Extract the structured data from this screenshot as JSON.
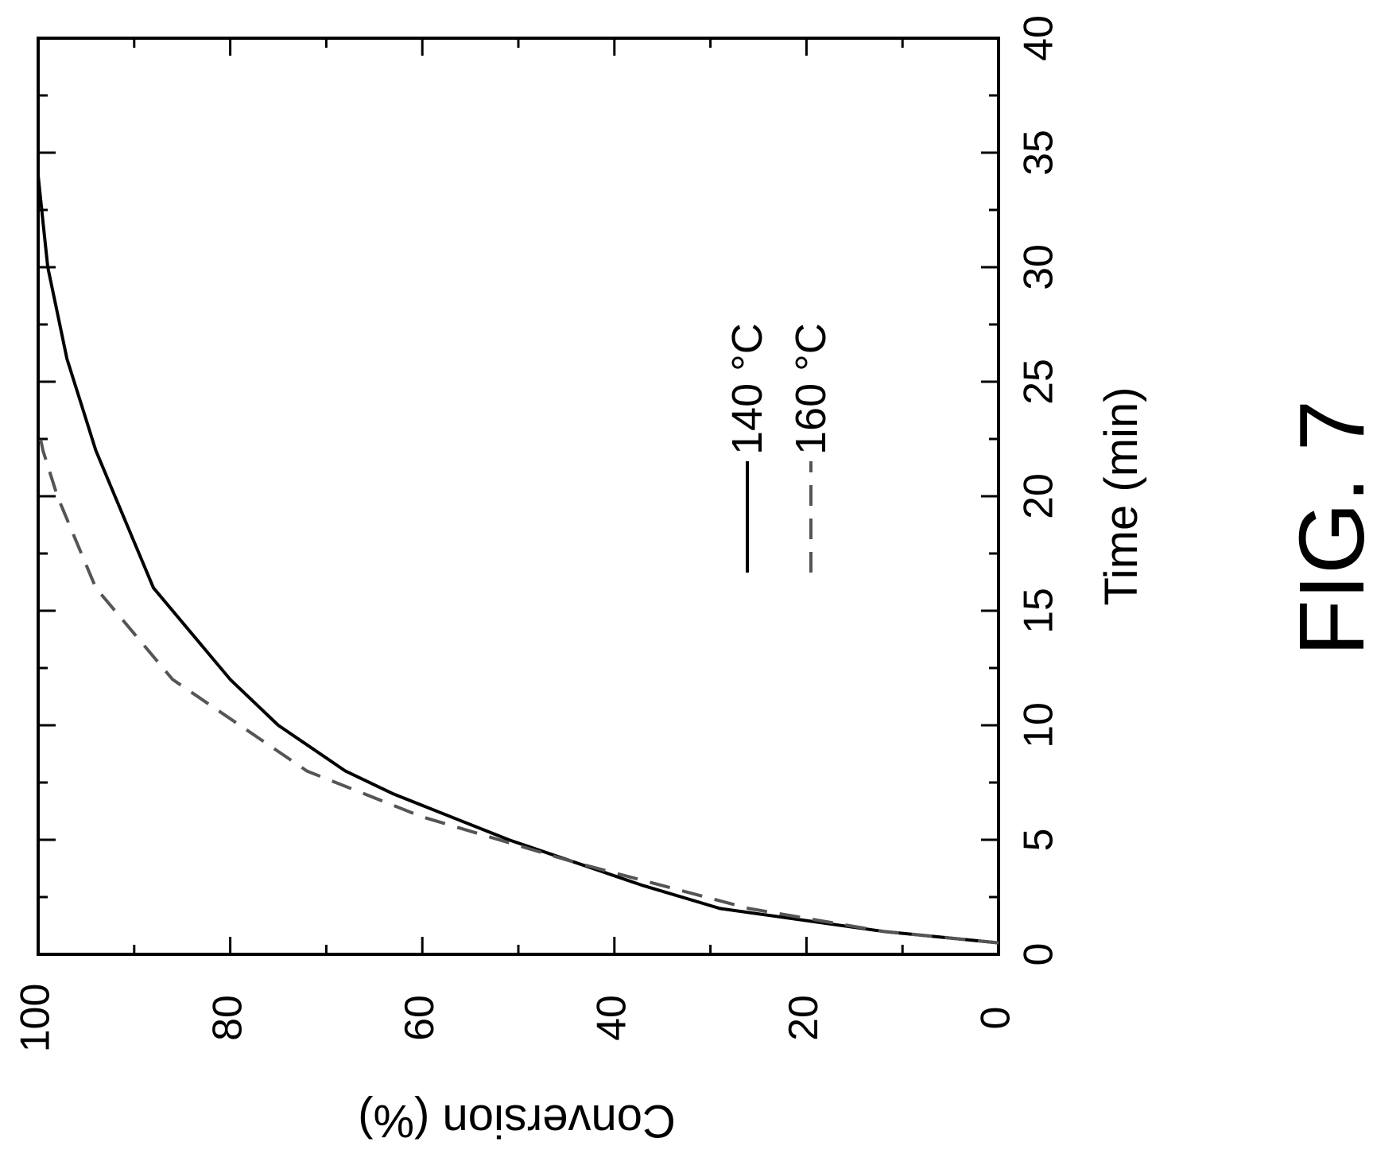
{
  "figure_label": "FIG. 7",
  "chart_data": {
    "type": "line",
    "xlabel": "Time (min)",
    "ylabel": "Conversion (%)",
    "xlim": [
      0,
      40
    ],
    "ylim": [
      0,
      100
    ],
    "x_ticks": [
      0,
      5,
      10,
      15,
      20,
      25,
      30,
      35,
      40
    ],
    "y_ticks": [
      0,
      20,
      40,
      60,
      80,
      100
    ],
    "grid": false,
    "legend_position": "upper-center",
    "orientation": "rotated-90",
    "series": [
      {
        "name": "140 °C",
        "style": "solid",
        "color": "#000000",
        "x": [
          0.5,
          1,
          2,
          3,
          4,
          5,
          6,
          7,
          8,
          10,
          12,
          14,
          16,
          18,
          20,
          22,
          24,
          26,
          28,
          30,
          32,
          34
        ],
        "y": [
          0,
          12,
          29,
          37,
          44,
          51,
          57,
          63,
          68,
          75,
          80,
          84,
          88,
          90,
          92,
          94,
          95.5,
          97,
          98,
          99,
          99.5,
          100
        ]
      },
      {
        "name": "160 °C",
        "style": "dashed",
        "color": "#555555",
        "x": [
          0.5,
          1,
          2,
          3,
          4,
          5,
          6,
          7,
          8,
          10,
          12,
          14,
          16,
          18,
          20,
          22,
          23
        ],
        "y": [
          0,
          12,
          26,
          35,
          44,
          52,
          60,
          66,
          72,
          79,
          86,
          90,
          94,
          96,
          98,
          99.5,
          100
        ]
      }
    ]
  }
}
